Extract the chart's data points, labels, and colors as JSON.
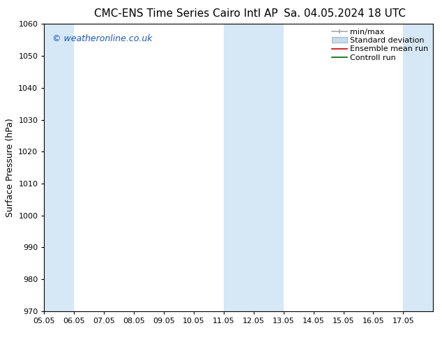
{
  "title_left": "CMC-ENS Time Series Cairo Intl AP",
  "title_right": "Sa. 04.05.2024 18 UTC",
  "ylabel": "Surface Pressure (hPa)",
  "ylim": [
    970,
    1060
  ],
  "yticks": [
    970,
    980,
    990,
    1000,
    1010,
    1020,
    1030,
    1040,
    1050,
    1060
  ],
  "xlim": [
    0,
    13
  ],
  "xtick_labels": [
    "05.05",
    "06.05",
    "07.05",
    "08.05",
    "09.05",
    "10.05",
    "11.05",
    "12.05",
    "13.05",
    "14.05",
    "15.05",
    "16.05",
    "17.05"
  ],
  "xtick_positions": [
    0,
    1,
    2,
    3,
    4,
    5,
    6,
    7,
    8,
    9,
    10,
    11,
    12
  ],
  "shaded_bands": [
    {
      "x_start": 0,
      "x_end": 1,
      "color": "#d6e8f5"
    },
    {
      "x_start": 6,
      "x_end": 8,
      "color": "#d6e8f5"
    },
    {
      "x_start": 12,
      "x_end": 13,
      "color": "#d6e8f5"
    }
  ],
  "watermark": "© weatheronline.co.uk",
  "watermark_color": "#1a56b0",
  "background_color": "#ffffff",
  "title_fontsize": 11,
  "axis_label_fontsize": 9,
  "tick_fontsize": 8,
  "legend_fontsize": 8,
  "watermark_fontsize": 9
}
